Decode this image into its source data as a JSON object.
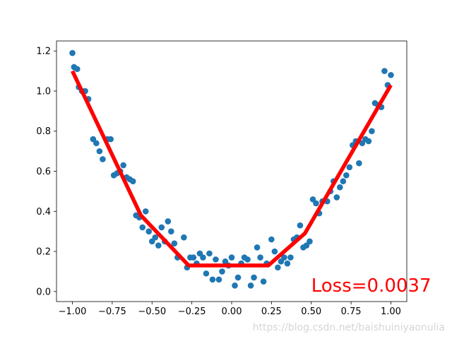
{
  "chart_data": {
    "type": "scatter",
    "xlim": [
      -1.1,
      1.1
    ],
    "ylim": [
      -0.05,
      1.25
    ],
    "grid": false,
    "x_ticks": [
      -1.0,
      -0.75,
      -0.5,
      -0.25,
      0.0,
      0.25,
      0.5,
      0.75,
      1.0
    ],
    "x_tick_labels": [
      "−1.00",
      "−0.75",
      "−0.50",
      "−0.25",
      "0.00",
      "0.25",
      "0.50",
      "0.75",
      "1.00"
    ],
    "y_ticks": [
      0.0,
      0.2,
      0.4,
      0.6,
      0.8,
      1.0,
      1.2
    ],
    "y_tick_labels": [
      "0.0",
      "0.2",
      "0.4",
      "0.6",
      "0.8",
      "1.0",
      "1.2"
    ],
    "scatter_color": "#1f77b4",
    "line_color": "#ff0000",
    "series": [
      {
        "type": "scatter",
        "points": [
          [
            -1.0,
            1.19
          ],
          [
            -0.99,
            1.12
          ],
          [
            -0.97,
            1.11
          ],
          [
            -0.96,
            1.02
          ],
          [
            -0.94,
            1.0
          ],
          [
            -0.92,
            1.0
          ],
          [
            -0.9,
            0.96
          ],
          [
            -0.87,
            0.76
          ],
          [
            -0.85,
            0.74
          ],
          [
            -0.83,
            0.7
          ],
          [
            -0.81,
            0.66
          ],
          [
            -0.78,
            0.76
          ],
          [
            -0.76,
            0.76
          ],
          [
            -0.74,
            0.58
          ],
          [
            -0.72,
            0.59
          ],
          [
            -0.7,
            0.6
          ],
          [
            -0.68,
            0.63
          ],
          [
            -0.66,
            0.57
          ],
          [
            -0.64,
            0.56
          ],
          [
            -0.62,
            0.55
          ],
          [
            -0.6,
            0.38
          ],
          [
            -0.58,
            0.37
          ],
          [
            -0.56,
            0.32
          ],
          [
            -0.54,
            0.4
          ],
          [
            -0.52,
            0.3
          ],
          [
            -0.5,
            0.25
          ],
          [
            -0.48,
            0.27
          ],
          [
            -0.46,
            0.23
          ],
          [
            -0.44,
            0.32
          ],
          [
            -0.42,
            0.25
          ],
          [
            -0.4,
            0.35
          ],
          [
            -0.38,
            0.3
          ],
          [
            -0.36,
            0.24
          ],
          [
            -0.34,
            0.17
          ],
          [
            -0.3,
            0.27
          ],
          [
            -0.28,
            0.12
          ],
          [
            -0.26,
            0.17
          ],
          [
            -0.24,
            0.17
          ],
          [
            -0.22,
            0.14
          ],
          [
            -0.2,
            0.19
          ],
          [
            -0.18,
            0.17
          ],
          [
            -0.16,
            0.09
          ],
          [
            -0.14,
            0.19
          ],
          [
            -0.12,
            0.06
          ],
          [
            -0.1,
            0.16
          ],
          [
            -0.08,
            0.06
          ],
          [
            -0.06,
            0.1
          ],
          [
            -0.04,
            0.15
          ],
          [
            -0.02,
            0.13
          ],
          [
            0.0,
            0.17
          ],
          [
            0.02,
            0.03
          ],
          [
            0.04,
            0.07
          ],
          [
            0.06,
            0.14
          ],
          [
            0.08,
            0.17
          ],
          [
            0.1,
            0.16
          ],
          [
            0.12,
            0.03
          ],
          [
            0.14,
            0.07
          ],
          [
            0.16,
            0.22
          ],
          [
            0.18,
            0.17
          ],
          [
            0.2,
            0.05
          ],
          [
            0.22,
            0.14
          ],
          [
            0.25,
            0.26
          ],
          [
            0.27,
            0.2
          ],
          [
            0.29,
            0.12
          ],
          [
            0.31,
            0.15
          ],
          [
            0.33,
            0.17
          ],
          [
            0.35,
            0.14
          ],
          [
            0.37,
            0.17
          ],
          [
            0.39,
            0.26
          ],
          [
            0.41,
            0.27
          ],
          [
            0.43,
            0.33
          ],
          [
            0.45,
            0.22
          ],
          [
            0.47,
            0.23
          ],
          [
            0.49,
            0.25
          ],
          [
            0.51,
            0.46
          ],
          [
            0.53,
            0.44
          ],
          [
            0.55,
            0.39
          ],
          [
            0.57,
            0.45
          ],
          [
            0.6,
            0.45
          ],
          [
            0.62,
            0.5
          ],
          [
            0.64,
            0.55
          ],
          [
            0.66,
            0.47
          ],
          [
            0.68,
            0.52
          ],
          [
            0.7,
            0.55
          ],
          [
            0.72,
            0.58
          ],
          [
            0.74,
            0.62
          ],
          [
            0.76,
            0.73
          ],
          [
            0.78,
            0.75
          ],
          [
            0.8,
            0.64
          ],
          [
            0.82,
            0.74
          ],
          [
            0.84,
            0.76
          ],
          [
            0.86,
            0.75
          ],
          [
            0.88,
            0.8
          ],
          [
            0.9,
            0.94
          ],
          [
            0.92,
            0.93
          ],
          [
            0.94,
            0.92
          ],
          [
            0.96,
            1.1
          ],
          [
            0.98,
            1.03
          ],
          [
            1.0,
            1.08
          ]
        ]
      },
      {
        "type": "line",
        "points": [
          [
            -1.0,
            1.1
          ],
          [
            -0.57,
            0.38
          ],
          [
            -0.27,
            0.13
          ],
          [
            -0.1,
            0.13
          ],
          [
            0.23,
            0.13
          ],
          [
            0.46,
            0.29
          ],
          [
            1.0,
            1.03
          ]
        ]
      }
    ],
    "annotations": [
      {
        "text": "Loss=0.0037",
        "x": 0.5,
        "y": 0.0,
        "color": "#ff0000"
      }
    ]
  },
  "watermark": "https://blog.csdn.net/baishuiniyaonulia"
}
